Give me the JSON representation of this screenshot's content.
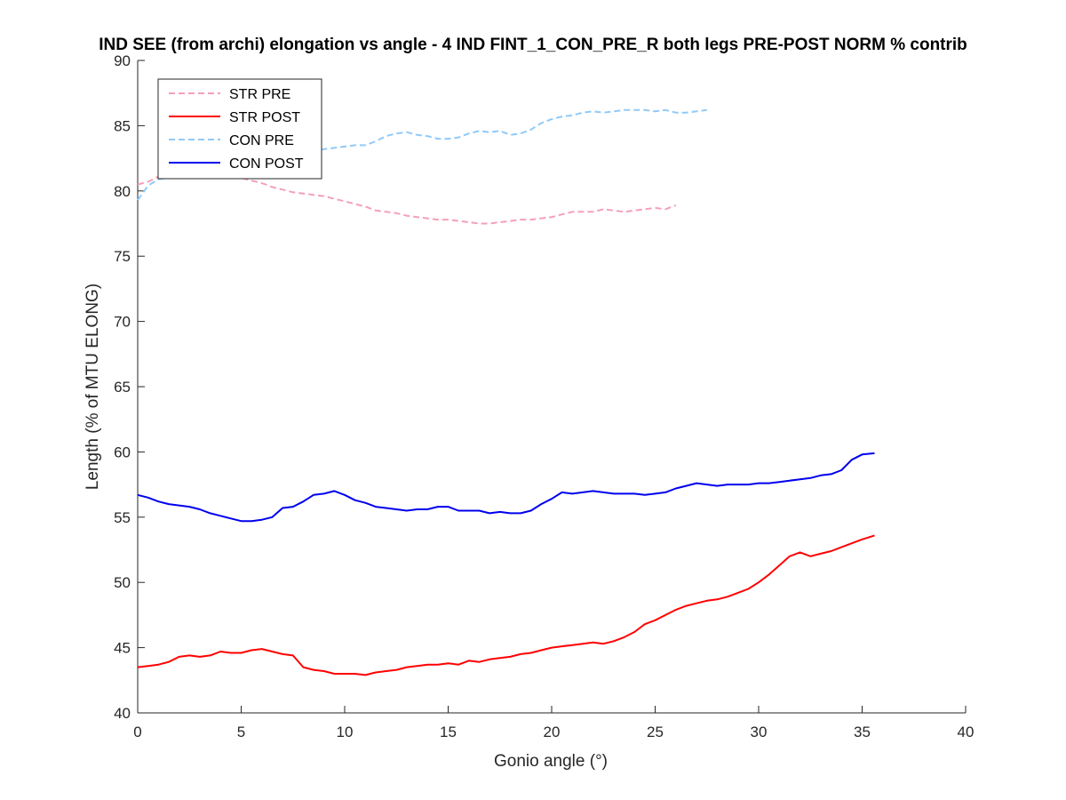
{
  "chart_data": {
    "type": "line",
    "title": "IND SEE (from archi) elongation vs angle - 4 IND FINT_1_CON_PRE_R both legs PRE-POST NORM % contrib",
    "xlabel": "Gonio angle (°)",
    "ylabel": "Length (% of MTU ELONG)",
    "xlim": [
      0,
      40
    ],
    "ylim": [
      40,
      90
    ],
    "xticks": [
      0,
      5,
      10,
      15,
      20,
      25,
      30,
      35,
      40
    ],
    "yticks": [
      40,
      45,
      50,
      55,
      60,
      65,
      70,
      75,
      80,
      85,
      90
    ],
    "grid": false,
    "legend_position": "top-left",
    "series": [
      {
        "name": "STR PRE",
        "color": "#f4a0b8",
        "dash": "dashed",
        "x": [
          0,
          0.5,
          1,
          1.5,
          2,
          2.5,
          3,
          3.5,
          4,
          4.5,
          5,
          5.5,
          6,
          6.5,
          7,
          7.5,
          8,
          8.5,
          9,
          9.5,
          10,
          10.5,
          11,
          11.5,
          12,
          12.5,
          13,
          13.5,
          14,
          14.5,
          15,
          15.5,
          16,
          16.5,
          17,
          17.5,
          18,
          18.5,
          19,
          19.5,
          20,
          20.5,
          21,
          21.5,
          22,
          22.5,
          23,
          23.5,
          24,
          24.5,
          25,
          25.5,
          26
        ],
        "y": [
          80.5,
          80.7,
          81.1,
          81.3,
          81.6,
          81.5,
          81.4,
          81.3,
          81.2,
          81.1,
          81.0,
          80.8,
          80.6,
          80.3,
          80.1,
          79.9,
          79.8,
          79.7,
          79.6,
          79.4,
          79.2,
          79.0,
          78.8,
          78.5,
          78.4,
          78.3,
          78.1,
          78.0,
          77.9,
          77.8,
          77.8,
          77.7,
          77.6,
          77.5,
          77.5,
          77.6,
          77.7,
          77.8,
          77.8,
          77.9,
          78.0,
          78.2,
          78.4,
          78.4,
          78.4,
          78.6,
          78.5,
          78.4,
          78.5,
          78.6,
          78.7,
          78.6,
          78.9
        ]
      },
      {
        "name": "STR POST",
        "color": "#ff0000",
        "dash": "solid",
        "x": [
          0,
          0.5,
          1,
          1.5,
          2,
          2.5,
          3,
          3.5,
          4,
          4.5,
          5,
          5.5,
          6,
          6.5,
          7,
          7.5,
          8,
          8.5,
          9,
          9.5,
          10,
          10.5,
          11,
          11.5,
          12,
          12.5,
          13,
          13.5,
          14,
          14.5,
          15,
          15.5,
          16,
          16.5,
          17,
          17.5,
          18,
          18.5,
          19,
          19.5,
          20,
          20.5,
          21,
          21.5,
          22,
          22.5,
          23,
          23.5,
          24,
          24.5,
          25,
          25.5,
          26,
          26.5,
          27,
          27.5,
          28,
          28.5,
          29,
          29.5,
          30,
          30.5,
          31,
          31.5,
          32,
          32.5,
          33,
          33.5,
          34,
          34.5,
          35,
          35.6
        ],
        "y": [
          43.5,
          43.6,
          43.7,
          43.9,
          44.3,
          44.4,
          44.3,
          44.4,
          44.7,
          44.6,
          44.6,
          44.8,
          44.9,
          44.7,
          44.5,
          44.4,
          43.5,
          43.3,
          43.2,
          43.0,
          43.0,
          43.0,
          42.9,
          43.1,
          43.2,
          43.3,
          43.5,
          43.6,
          43.7,
          43.7,
          43.8,
          43.7,
          44.0,
          43.9,
          44.1,
          44.2,
          44.3,
          44.5,
          44.6,
          44.8,
          45.0,
          45.1,
          45.2,
          45.3,
          45.4,
          45.3,
          45.5,
          45.8,
          46.2,
          46.8,
          47.1,
          47.5,
          47.9,
          48.2,
          48.4,
          48.6,
          48.7,
          48.9,
          49.2,
          49.5,
          50.0,
          50.6,
          51.3,
          52.0,
          52.3,
          52.0,
          52.2,
          52.4,
          52.7,
          53.0,
          53.3,
          53.6
        ]
      },
      {
        "name": "CON PRE",
        "color": "#90caf9",
        "dash": "dashed",
        "x": [
          0,
          0.5,
          1,
          1.5,
          2,
          2.5,
          3,
          3.5,
          4,
          4.5,
          5,
          5.5,
          6,
          6.5,
          7,
          7.5,
          8,
          8.5,
          9,
          9.5,
          10,
          10.5,
          11,
          11.5,
          12,
          12.5,
          13,
          13.5,
          14,
          14.5,
          15,
          15.5,
          16,
          16.5,
          17,
          17.5,
          18,
          18.5,
          19,
          19.5,
          20,
          20.5,
          21,
          21.5,
          22,
          22.5,
          23,
          23.5,
          24,
          24.5,
          25,
          25.5,
          26,
          26.5,
          27,
          27.5
        ],
        "y": [
          79.3,
          80.4,
          80.9,
          81.0,
          81.2,
          81.4,
          81.6,
          81.8,
          82.0,
          82.2,
          82.3,
          82.4,
          82.5,
          82.6,
          82.7,
          82.8,
          82.9,
          83.0,
          83.2,
          83.3,
          83.4,
          83.5,
          83.5,
          83.8,
          84.2,
          84.4,
          84.5,
          84.3,
          84.2,
          84.0,
          84.0,
          84.1,
          84.4,
          84.6,
          84.5,
          84.6,
          84.3,
          84.4,
          84.7,
          85.2,
          85.5,
          85.7,
          85.8,
          86.0,
          86.1,
          86.0,
          86.1,
          86.2,
          86.2,
          86.2,
          86.1,
          86.2,
          86.0,
          86.0,
          86.1,
          86.2
        ]
      },
      {
        "name": "CON POST",
        "color": "#0000ee",
        "dash": "solid",
        "x": [
          0,
          0.5,
          1,
          1.5,
          2,
          2.5,
          3,
          3.5,
          4,
          4.5,
          5,
          5.5,
          6,
          6.5,
          7,
          7.5,
          8,
          8.5,
          9,
          9.5,
          10,
          10.5,
          11,
          11.5,
          12,
          12.5,
          13,
          13.5,
          14,
          14.5,
          15,
          15.5,
          16,
          16.5,
          17,
          17.5,
          18,
          18.5,
          19,
          19.5,
          20,
          20.5,
          21,
          21.5,
          22,
          22.5,
          23,
          23.5,
          24,
          24.5,
          25,
          25.5,
          26,
          26.5,
          27,
          27.5,
          28,
          28.5,
          29,
          29.5,
          30,
          30.5,
          31,
          31.5,
          32,
          32.5,
          33,
          33.5,
          34,
          34.5,
          35,
          35.6
        ],
        "y": [
          56.7,
          56.5,
          56.2,
          56.0,
          55.9,
          55.8,
          55.6,
          55.3,
          55.1,
          54.9,
          54.7,
          54.7,
          54.8,
          55.0,
          55.7,
          55.8,
          56.2,
          56.7,
          56.8,
          57.0,
          56.7,
          56.3,
          56.1,
          55.8,
          55.7,
          55.6,
          55.5,
          55.6,
          55.6,
          55.8,
          55.8,
          55.5,
          55.5,
          55.5,
          55.3,
          55.4,
          55.3,
          55.3,
          55.5,
          56.0,
          56.4,
          56.9,
          56.8,
          56.9,
          57.0,
          56.9,
          56.8,
          56.8,
          56.8,
          56.7,
          56.8,
          56.9,
          57.2,
          57.4,
          57.6,
          57.5,
          57.4,
          57.5,
          57.5,
          57.5,
          57.6,
          57.6,
          57.7,
          57.8,
          57.9,
          58.0,
          58.2,
          58.3,
          58.6,
          59.4,
          59.8,
          59.9
        ]
      }
    ]
  }
}
